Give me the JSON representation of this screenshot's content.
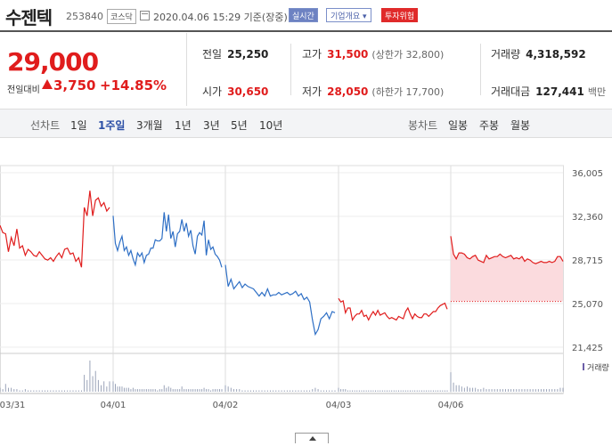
{
  "header": {
    "stock_name": "수젠텍",
    "stock_code": "253840",
    "market": "코스닥",
    "date_text": "2020.04.06 15:29 기준(장중)",
    "realtime_label": "실시간",
    "company_label": "기업개요 ▾",
    "warning_label": "투자위험"
  },
  "price": {
    "current": "29,000",
    "change_label": "전일대비",
    "change_amount": "3,750",
    "change_pct": "+14.85%",
    "direction": "up"
  },
  "stats": {
    "prev_label": "전일",
    "prev_value": "25,250",
    "open_label": "시가",
    "open_value": "30,650",
    "high_label": "고가",
    "high_value": "31,500",
    "high_sub": "(상한가 32,800)",
    "low_label": "저가",
    "low_value": "28,050",
    "low_sub": "(하한가 17,700)",
    "volume_label": "거래량",
    "volume_value": "4,318,592",
    "amount_label": "거래대금",
    "amount_value": "127,441",
    "amount_unit": "백만"
  },
  "tabs": {
    "line_chart_label": "선차트",
    "line_items": [
      "1일",
      "1주일",
      "3개월",
      "1년",
      "3년",
      "5년",
      "10년"
    ],
    "active_index": 1,
    "candle_chart_label": "봉차트",
    "candle_items": [
      "일봉",
      "주봉",
      "월봉"
    ]
  },
  "colors": {
    "up": "#e01c1c",
    "down": "#2e6fc5",
    "fill": "#fbd7da",
    "accent": "#2c4fa6"
  },
  "chart_data": {
    "type": "line",
    "y_ticks": [
      "36,005",
      "32,360",
      "28,715",
      "25,070",
      "21,425"
    ],
    "ylim": [
      21425,
      36005
    ],
    "x_ticks": [
      "03/31",
      "04/01",
      "04/02",
      "04/03",
      "04/06"
    ],
    "prev_close": 25250,
    "volume_legend": "거래량",
    "series": [
      {
        "day": "03/31",
        "color": "up",
        "values": [
          31600,
          31000,
          30900,
          29400,
          30600,
          29900,
          31300,
          29700,
          29900,
          29100,
          29600,
          29400,
          29100,
          29000,
          29400,
          29100,
          28800,
          28700,
          28900,
          28600,
          29000,
          29300,
          28900,
          29600,
          29700,
          29200,
          29300,
          28600,
          28900,
          28100,
          33100,
          32400,
          34500,
          32400,
          33700,
          33900,
          33200,
          33500,
          32800,
          33100
        ]
      },
      {
        "day": "04/01",
        "color": "down",
        "values": [
          32400,
          30100,
          29500,
          30200,
          30700,
          29500,
          29800,
          29100,
          29500,
          28800,
          28300,
          29300,
          29000,
          29300,
          28500,
          29100,
          29200,
          29700,
          29700,
          30400,
          30300,
          30300,
          30500,
          32700,
          31100,
          32500,
          30500,
          31100,
          29800,
          30900,
          31100,
          32100,
          31100,
          31800,
          30700,
          31200,
          29900,
          29200,
          30700,
          31000,
          30800,
          32000,
          29100,
          30400,
          29600,
          29800,
          29200,
          29000,
          28700,
          28100
        ]
      },
      {
        "day": "04/02",
        "color": "down",
        "values": [
          28300,
          26500,
          27100,
          26300,
          26600,
          26900,
          26400,
          26700,
          26500,
          26400,
          26300,
          26000,
          25700,
          26000,
          25700,
          26300,
          25700,
          25800,
          25800,
          26000,
          25800,
          25900,
          26000,
          25800,
          25900,
          26100,
          25700,
          25900,
          25400,
          25600,
          25200,
          23700,
          22500,
          22900,
          23800,
          24000,
          24300,
          23800,
          24400,
          24300
        ]
      },
      {
        "day": "04/03",
        "color": "up",
        "values": [
          25500,
          25200,
          25300,
          24300,
          24700,
          24700,
          23700,
          24000,
          24200,
          24200,
          24500,
          24000,
          24100,
          23700,
          24100,
          24400,
          24100,
          24500,
          24100,
          24200,
          24300,
          24000,
          23800,
          23900,
          23800,
          23700,
          24000,
          23900,
          23800,
          24400,
          24700,
          24200,
          23800,
          24200,
          24000,
          23900,
          23900,
          24200,
          24200,
          24000,
          24200,
          24400,
          24400,
          24700,
          24900,
          25000,
          25100,
          24600
        ]
      },
      {
        "day": "04/06",
        "color": "up",
        "values": [
          30700,
          29200,
          28800,
          29300,
          29300,
          29200,
          28900,
          28800,
          29000,
          29100,
          28700,
          28600,
          28500,
          29100,
          28800,
          28900,
          29000,
          29000,
          29200,
          29000,
          28900,
          29000,
          29100,
          28800,
          28900,
          28800,
          29000,
          28600,
          28800,
          28700,
          28500,
          28400,
          28500,
          28600,
          28500,
          28500,
          28600,
          28500,
          28600,
          29000,
          29000,
          28600
        ]
      }
    ],
    "volume": [
      [
        3,
        2,
        6,
        3,
        3,
        2,
        2,
        1,
        1,
        2,
        1,
        1,
        1,
        1,
        1,
        1,
        1,
        1,
        1,
        1,
        1,
        1,
        1,
        1,
        1,
        1,
        1,
        1,
        1,
        1,
        13,
        9,
        24,
        12,
        16,
        9,
        5,
        8,
        4,
        8
      ],
      [
        8,
        6,
        4,
        4,
        4,
        3,
        3,
        3,
        2,
        3,
        2,
        2,
        2,
        2,
        2,
        2,
        2,
        2,
        2,
        2,
        1,
        2,
        2,
        5,
        3,
        4,
        3,
        2,
        2,
        2,
        2,
        4,
        2,
        2,
        2,
        2,
        2,
        2,
        2,
        2,
        2,
        3,
        2,
        2,
        1,
        2,
        2,
        2,
        2,
        2
      ],
      [
        5,
        4,
        3,
        2,
        2,
        2,
        1,
        1,
        1,
        1,
        1,
        1,
        1,
        1,
        1,
        1,
        1,
        1,
        1,
        1,
        1,
        1,
        1,
        1,
        1,
        1,
        1,
        1,
        1,
        1,
        1,
        2,
        3,
        2,
        1,
        1,
        1,
        1,
        1,
        1
      ],
      [
        3,
        2,
        2,
        2,
        1,
        1,
        1,
        1,
        1,
        1,
        1,
        1,
        1,
        1,
        1,
        1,
        1,
        1,
        1,
        1,
        1,
        1,
        1,
        1,
        1,
        1,
        1,
        1,
        1,
        1,
        1,
        1,
        1,
        1,
        1,
        1,
        1,
        1,
        1,
        1,
        1,
        1,
        1,
        1,
        1,
        1,
        1,
        1
      ],
      [
        15,
        7,
        5,
        5,
        4,
        3,
        4,
        3,
        3,
        3,
        2,
        2,
        3,
        2,
        2,
        2,
        2,
        2,
        2,
        2,
        2,
        2,
        2,
        2,
        2,
        2,
        2,
        2,
        2,
        2,
        2,
        2,
        2,
        2,
        2,
        2,
        2,
        2,
        2,
        2,
        3,
        3
      ]
    ]
  }
}
